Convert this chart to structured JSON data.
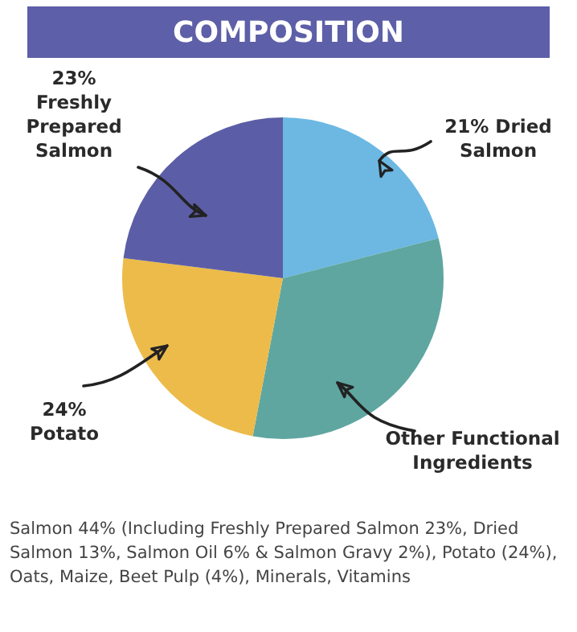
{
  "chart_data": {
    "type": "pie",
    "title": "COMPOSITION",
    "categories": [
      "21% Dried Salmon",
      "Other Functional Ingredients",
      "24% Potato",
      "23% Freshly Prepared Salmon"
    ],
    "values": [
      21,
      32,
      24,
      23
    ],
    "colors": [
      "#6cb8e3",
      "#5fa6a0",
      "#ecbb4a",
      "#5b5ea6"
    ],
    "legend": false,
    "annotations": [
      "Salmon 44% (Including Freshly Prepared Salmon 23%, Dried Salmon 13%, Salmon Oil 6% & Salmon Gravy 2%), Potato (24%), Oats, Maize, Beet Pulp (4%), Minerals, Vitamins"
    ]
  }
}
